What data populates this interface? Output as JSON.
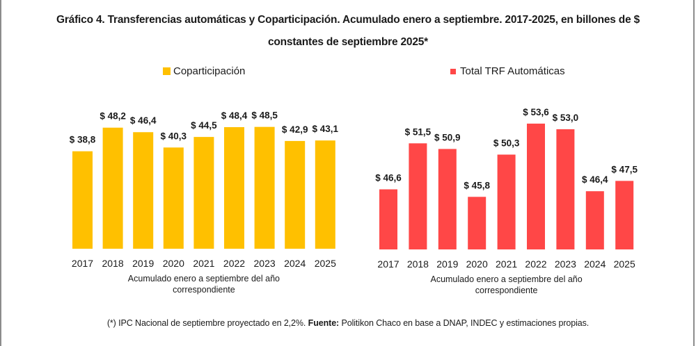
{
  "title_line1": "Gráfico 4. Transferencias automáticas y Coparticipación. Acumulado enero a septiembre. 2017-2025, en billones de $",
  "title_line2": "constantes de septiembre 2025*",
  "footnote": {
    "note": "(*) IPC Nacional de septiembre proyectado en 2,2%. ",
    "source_label": "Fuente:",
    "source_text": " Politikon Chaco en base a DNAP, INDEC y estimaciones propias."
  },
  "chart_data": [
    {
      "type": "bar",
      "title": "",
      "legend": "Coparticipación",
      "legend_position": "top",
      "color": "#FFC000",
      "categories": [
        "2017",
        "2018",
        "2019",
        "2020",
        "2021",
        "2022",
        "2023",
        "2024",
        "2025"
      ],
      "values": [
        38.8,
        48.2,
        46.4,
        40.3,
        44.5,
        48.4,
        48.5,
        42.9,
        43.1
      ],
      "data_labels": [
        "$ 38,8",
        "$ 48,2",
        "$ 46,4",
        "$ 40,3",
        "$ 44,5",
        "$ 48,4",
        "$ 48,5",
        "$ 42,9",
        "$ 43,1"
      ],
      "xlabel": [
        "Acumulado enero a septiembre del año",
        "correspondiente"
      ],
      "ylabel": "",
      "ylim": [
        0,
        52
      ],
      "grid": false
    },
    {
      "type": "bar",
      "title": "",
      "legend": "Total TRF Automáticas",
      "legend_position": "top",
      "color": "#FF4747",
      "categories": [
        "2017",
        "2018",
        "2019",
        "2020",
        "2021",
        "2022",
        "2023",
        "2024",
        "2025"
      ],
      "values": [
        46.6,
        51.5,
        50.9,
        45.8,
        50.3,
        53.6,
        53.0,
        46.4,
        47.5
      ],
      "data_labels": [
        "$ 46,6",
        "$ 51,5",
        "$ 50,9",
        "$ 45,8",
        "$ 50,3",
        "$ 53,6",
        "$ 53,0",
        "$ 46,4",
        "$ 47,5"
      ],
      "xlabel": [
        "Acumulado enero a septiembre del año",
        "correspondiente"
      ],
      "ylabel": "",
      "ylim": [
        40.2,
        55
      ],
      "grid": false
    }
  ]
}
